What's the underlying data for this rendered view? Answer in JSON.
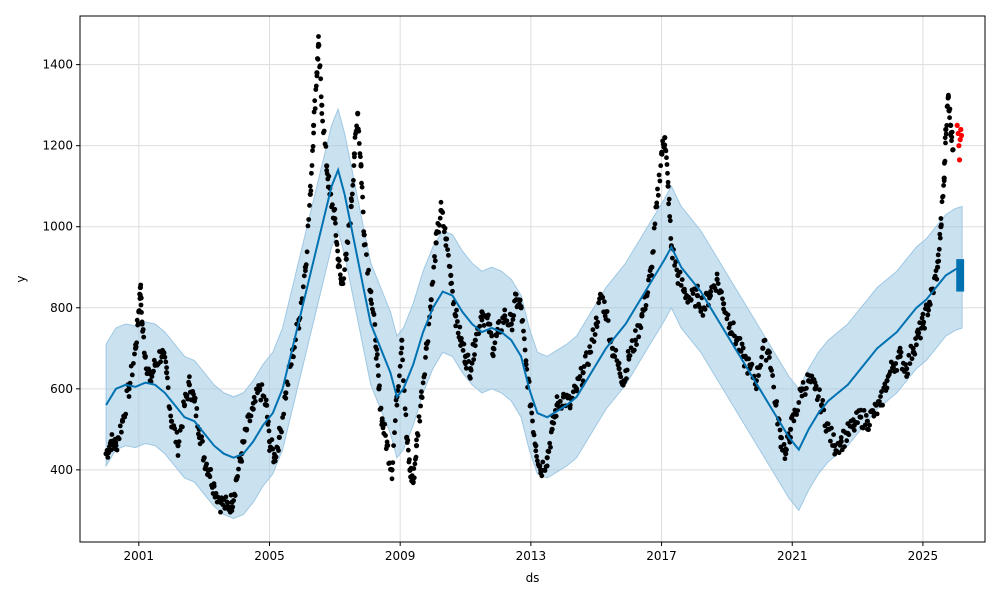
{
  "chart_data": {
    "type": "line",
    "title": "",
    "xlabel": "ds",
    "ylabel": "y",
    "xlim": [
      1999.2,
      2026.9
    ],
    "ylim": [
      222,
      1520
    ],
    "grid": true,
    "x_ticks": [
      {
        "value": 2001,
        "label": "2001"
      },
      {
        "value": 2005,
        "label": "2005"
      },
      {
        "value": 2009,
        "label": "2009"
      },
      {
        "value": 2013,
        "label": "2013"
      },
      {
        "value": 2017,
        "label": "2017"
      },
      {
        "value": 2021,
        "label": "2021"
      },
      {
        "value": 2025,
        "label": "2025"
      }
    ],
    "y_ticks": [
      {
        "value": 400,
        "label": "400"
      },
      {
        "value": 600,
        "label": "600"
      },
      {
        "value": 800,
        "label": "800"
      },
      {
        "value": 1000,
        "label": "1000"
      },
      {
        "value": 1200,
        "label": "1200"
      },
      {
        "value": 1400,
        "label": "1400"
      }
    ],
    "colors": {
      "observed": "#000000",
      "forecast": "#0072B2",
      "interval": "#9ec8e3",
      "holdout": "#ff0000",
      "grid": "#dddddd"
    },
    "observed_points": [
      [
        2000.0,
        440
      ],
      [
        2000.15,
        470
      ],
      [
        2000.3,
        460
      ],
      [
        2000.5,
        520
      ],
      [
        2000.7,
        600
      ],
      [
        2000.9,
        700
      ],
      [
        2001.0,
        790
      ],
      [
        2001.05,
        850
      ],
      [
        2001.1,
        760
      ],
      [
        2001.2,
        680
      ],
      [
        2001.35,
        620
      ],
      [
        2001.5,
        660
      ],
      [
        2001.7,
        690
      ],
      [
        2001.85,
        640
      ],
      [
        2002.0,
        520
      ],
      [
        2002.2,
        460
      ],
      [
        2002.4,
        560
      ],
      [
        2002.55,
        610
      ],
      [
        2002.7,
        570
      ],
      [
        2002.85,
        500
      ],
      [
        2003.0,
        430
      ],
      [
        2003.15,
        400
      ],
      [
        2003.3,
        360
      ],
      [
        2003.5,
        320
      ],
      [
        2003.7,
        310
      ],
      [
        2003.85,
        320
      ],
      [
        2004.0,
        380
      ],
      [
        2004.15,
        440
      ],
      [
        2004.3,
        500
      ],
      [
        2004.5,
        550
      ],
      [
        2004.7,
        600
      ],
      [
        2004.9,
        560
      ],
      [
        2005.0,
        470
      ],
      [
        2005.15,
        430
      ],
      [
        2005.3,
        480
      ],
      [
        2005.5,
        590
      ],
      [
        2005.7,
        680
      ],
      [
        2005.9,
        770
      ],
      [
        2006.1,
        900
      ],
      [
        2006.25,
        1080
      ],
      [
        2006.35,
        1250
      ],
      [
        2006.45,
        1380
      ],
      [
        2006.5,
        1450
      ],
      [
        2006.6,
        1300
      ],
      [
        2006.75,
        1150
      ],
      [
        2006.85,
        1080
      ],
      [
        2007.0,
        1020
      ],
      [
        2007.1,
        920
      ],
      [
        2007.2,
        860
      ],
      [
        2007.35,
        920
      ],
      [
        2007.5,
        1050
      ],
      [
        2007.6,
        1180
      ],
      [
        2007.7,
        1280
      ],
      [
        2007.8,
        1150
      ],
      [
        2007.9,
        980
      ],
      [
        2008.1,
        840
      ],
      [
        2008.25,
        720
      ],
      [
        2008.35,
        600
      ],
      [
        2008.45,
        520
      ],
      [
        2008.6,
        460
      ],
      [
        2008.75,
        400
      ],
      [
        2008.9,
        580
      ],
      [
        2009.05,
        720
      ],
      [
        2009.2,
        480
      ],
      [
        2009.3,
        400
      ],
      [
        2009.4,
        370
      ],
      [
        2009.5,
        460
      ],
      [
        2009.65,
        580
      ],
      [
        2009.8,
        700
      ],
      [
        2009.95,
        820
      ],
      [
        2010.1,
        960
      ],
      [
        2010.25,
        1040
      ],
      [
        2010.4,
        970
      ],
      [
        2010.55,
        880
      ],
      [
        2010.7,
        780
      ],
      [
        2010.85,
        720
      ],
      [
        2011.0,
        680
      ],
      [
        2011.15,
        650
      ],
      [
        2011.3,
        720
      ],
      [
        2011.5,
        790
      ],
      [
        2011.7,
        760
      ],
      [
        2011.85,
        700
      ],
      [
        2012.0,
        740
      ],
      [
        2012.2,
        780
      ],
      [
        2012.4,
        760
      ],
      [
        2012.55,
        820
      ],
      [
        2012.7,
        800
      ],
      [
        2012.85,
        660
      ],
      [
        2013.0,
        560
      ],
      [
        2013.15,
        460
      ],
      [
        2013.3,
        400
      ],
      [
        2013.5,
        430
      ],
      [
        2013.65,
        500
      ],
      [
        2013.8,
        560
      ],
      [
        2014.0,
        580
      ],
      [
        2014.2,
        560
      ],
      [
        2014.4,
        600
      ],
      [
        2014.6,
        640
      ],
      [
        2014.8,
        690
      ],
      [
        2015.0,
        760
      ],
      [
        2015.15,
        830
      ],
      [
        2015.3,
        790
      ],
      [
        2015.5,
        700
      ],
      [
        2015.7,
        650
      ],
      [
        2015.85,
        620
      ],
      [
        2016.0,
        680
      ],
      [
        2016.2,
        720
      ],
      [
        2016.4,
        780
      ],
      [
        2016.55,
        830
      ],
      [
        2016.7,
        900
      ],
      [
        2016.85,
        1050
      ],
      [
        2017.0,
        1180
      ],
      [
        2017.1,
        1220
      ],
      [
        2017.2,
        1100
      ],
      [
        2017.3,
        950
      ],
      [
        2017.5,
        880
      ],
      [
        2017.7,
        840
      ],
      [
        2017.9,
        820
      ],
      [
        2018.1,
        830
      ],
      [
        2018.3,
        800
      ],
      [
        2018.5,
        840
      ],
      [
        2018.7,
        870
      ],
      [
        2018.9,
        810
      ],
      [
        2019.1,
        760
      ],
      [
        2019.3,
        720
      ],
      [
        2019.5,
        680
      ],
      [
        2019.7,
        650
      ],
      [
        2019.9,
        620
      ],
      [
        2020.1,
        700
      ],
      [
        2020.3,
        690
      ],
      [
        2020.5,
        560
      ],
      [
        2020.65,
        480
      ],
      [
        2020.8,
        440
      ],
      [
        2020.95,
        500
      ],
      [
        2021.1,
        540
      ],
      [
        2021.3,
        600
      ],
      [
        2021.5,
        620
      ],
      [
        2021.7,
        600
      ],
      [
        2021.9,
        560
      ],
      [
        2022.1,
        500
      ],
      [
        2022.3,
        460
      ],
      [
        2022.5,
        470
      ],
      [
        2022.7,
        490
      ],
      [
        2022.9,
        510
      ],
      [
        2023.1,
        530
      ],
      [
        2023.3,
        520
      ],
      [
        2023.5,
        540
      ],
      [
        2023.7,
        560
      ],
      [
        2023.9,
        620
      ],
      [
        2024.1,
        660
      ],
      [
        2024.3,
        680
      ],
      [
        2024.5,
        650
      ],
      [
        2024.7,
        700
      ],
      [
        2024.85,
        730
      ],
      [
        2025.0,
        760
      ],
      [
        2025.15,
        800
      ],
      [
        2025.3,
        840
      ],
      [
        2025.45,
        900
      ],
      [
        2025.55,
        1000
      ],
      [
        2025.65,
        1120
      ],
      [
        2025.7,
        1240
      ],
      [
        2025.78,
        1320
      ],
      [
        2025.85,
        1250
      ],
      [
        2025.92,
        1190
      ]
    ],
    "holdout_points": [
      [
        2026.05,
        1250
      ],
      [
        2026.08,
        1230
      ],
      [
        2026.1,
        1200
      ],
      [
        2026.12,
        1165
      ],
      [
        2026.14,
        1215
      ],
      [
        2026.16,
        1240
      ],
      [
        2026.18,
        1225
      ]
    ],
    "forecast": [
      [
        2000.0,
        560
      ],
      [
        2000.3,
        600
      ],
      [
        2000.6,
        610
      ],
      [
        2000.9,
        605
      ],
      [
        2001.2,
        615
      ],
      [
        2001.5,
        610
      ],
      [
        2001.8,
        590
      ],
      [
        2002.1,
        560
      ],
      [
        2002.4,
        530
      ],
      [
        2002.7,
        520
      ],
      [
        2003.0,
        490
      ],
      [
        2003.3,
        460
      ],
      [
        2003.6,
        440
      ],
      [
        2003.9,
        430
      ],
      [
        2004.2,
        440
      ],
      [
        2004.5,
        470
      ],
      [
        2004.8,
        510
      ],
      [
        2005.1,
        540
      ],
      [
        2005.4,
        600
      ],
      [
        2005.7,
        700
      ],
      [
        2006.0,
        800
      ],
      [
        2006.3,
        900
      ],
      [
        2006.6,
        1000
      ],
      [
        2006.9,
        1100
      ],
      [
        2007.1,
        1140
      ],
      [
        2007.3,
        1080
      ],
      [
        2007.5,
        1000
      ],
      [
        2007.7,
        920
      ],
      [
        2007.9,
        840
      ],
      [
        2008.1,
        760
      ],
      [
        2008.4,
        700
      ],
      [
        2008.7,
        640
      ],
      [
        2008.9,
        580
      ],
      [
        2009.1,
        600
      ],
      [
        2009.4,
        660
      ],
      [
        2009.7,
        740
      ],
      [
        2010.0,
        800
      ],
      [
        2010.3,
        840
      ],
      [
        2010.6,
        830
      ],
      [
        2010.9,
        790
      ],
      [
        2011.2,
        760
      ],
      [
        2011.5,
        740
      ],
      [
        2011.8,
        750
      ],
      [
        2012.1,
        740
      ],
      [
        2012.4,
        720
      ],
      [
        2012.7,
        680
      ],
      [
        2012.95,
        600
      ],
      [
        2013.2,
        540
      ],
      [
        2013.5,
        530
      ],
      [
        2013.8,
        545
      ],
      [
        2014.1,
        560
      ],
      [
        2014.4,
        580
      ],
      [
        2014.7,
        620
      ],
      [
        2015.0,
        660
      ],
      [
        2015.3,
        700
      ],
      [
        2015.6,
        730
      ],
      [
        2015.9,
        760
      ],
      [
        2016.2,
        800
      ],
      [
        2016.5,
        840
      ],
      [
        2016.8,
        880
      ],
      [
        2017.1,
        920
      ],
      [
        2017.3,
        950
      ],
      [
        2017.6,
        900
      ],
      [
        2017.9,
        870
      ],
      [
        2018.2,
        840
      ],
      [
        2018.5,
        800
      ],
      [
        2018.8,
        760
      ],
      [
        2019.1,
        720
      ],
      [
        2019.4,
        680
      ],
      [
        2019.7,
        640
      ],
      [
        2020.0,
        600
      ],
      [
        2020.3,
        560
      ],
      [
        2020.6,
        520
      ],
      [
        2020.9,
        480
      ],
      [
        2021.2,
        450
      ],
      [
        2021.5,
        500
      ],
      [
        2021.8,
        540
      ],
      [
        2022.1,
        570
      ],
      [
        2022.4,
        590
      ],
      [
        2022.7,
        610
      ],
      [
        2023.0,
        640
      ],
      [
        2023.3,
        670
      ],
      [
        2023.6,
        700
      ],
      [
        2023.9,
        720
      ],
      [
        2024.2,
        740
      ],
      [
        2024.5,
        770
      ],
      [
        2024.8,
        800
      ],
      [
        2025.1,
        820
      ],
      [
        2025.4,
        850
      ],
      [
        2025.7,
        880
      ],
      [
        2026.0,
        895
      ],
      [
        2026.2,
        900
      ]
    ],
    "interval_half_width": 150
  }
}
